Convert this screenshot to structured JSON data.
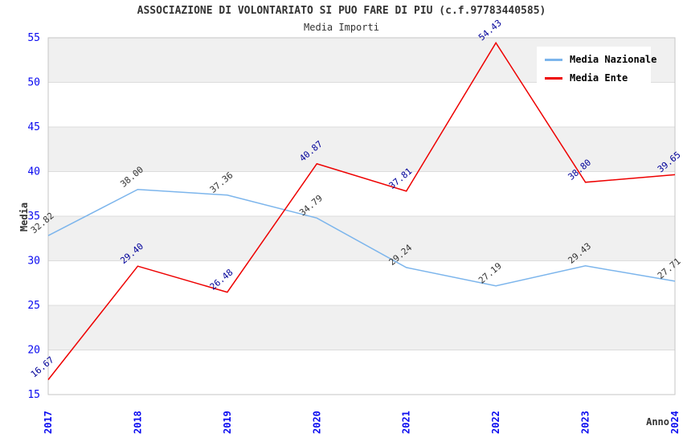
{
  "title": "ASSOCIAZIONE DI VOLONTARIATO SI PUO FARE DI PIU (c.f.97783440585)",
  "subtitle": "Media Importi",
  "chart_data": {
    "type": "line",
    "x": [
      2017,
      2018,
      2019,
      2020,
      2021,
      2022,
      2023,
      2024
    ],
    "series": [
      {
        "name": "Media Nazionale",
        "color": "#7cb5ec",
        "label_color": "#333333",
        "values": [
          32.82,
          38.0,
          37.36,
          34.79,
          29.24,
          27.19,
          29.43,
          27.71
        ]
      },
      {
        "name": "Media Ente",
        "color": "#ee0000",
        "label_color": "#000099",
        "values": [
          16.67,
          29.4,
          26.48,
          40.87,
          37.81,
          54.43,
          38.8,
          39.65
        ]
      }
    ],
    "xlabel": "Anno",
    "ylabel": "Media",
    "ylim": [
      15,
      55
    ],
    "ytick_step": 5,
    "grid": true,
    "legend_position": "top-right",
    "colors": {
      "band_fill": "#f0f0f0",
      "grid_line": "#dcdcdc",
      "plot_border": "#c6c6c6",
      "tick_label": "#0a0af0",
      "axis_title": "#333333"
    }
  }
}
